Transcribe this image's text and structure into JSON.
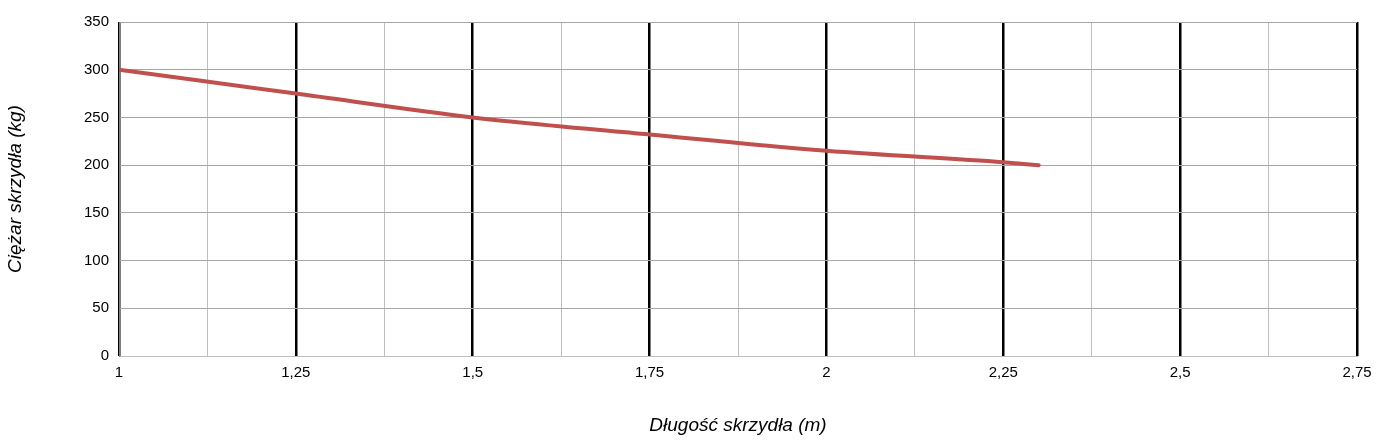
{
  "chart_data": {
    "type": "line",
    "xlabel": "Długość skrzydła (m)",
    "ylabel": "Ciężar skrzydła (kg)",
    "series": [
      {
        "color": "#c0504d",
        "x": [
          1,
          1.25,
          1.5,
          1.75,
          2,
          2.25,
          2.3
        ],
        "values": [
          300,
          275,
          250,
          232,
          215,
          203,
          200
        ]
      }
    ],
    "xlim": [
      1,
      2.75
    ],
    "xticks": [
      {
        "value": 1,
        "label": "1"
      },
      {
        "value": 1.125,
        "label": null
      },
      {
        "value": 1.25,
        "label": "1,25"
      },
      {
        "value": 1.375,
        "label": null
      },
      {
        "value": 1.5,
        "label": "1,5"
      },
      {
        "value": 1.625,
        "label": null
      },
      {
        "value": 1.75,
        "label": "1,75"
      },
      {
        "value": 1.875,
        "label": null
      },
      {
        "value": 2,
        "label": "2"
      },
      {
        "value": 2.125,
        "label": null
      },
      {
        "value": 2.25,
        "label": "2,25"
      },
      {
        "value": 2.375,
        "label": null
      },
      {
        "value": 2.5,
        "label": "2,5"
      },
      {
        "value": 2.625,
        "label": null
      },
      {
        "value": 2.75,
        "label": "2,75"
      }
    ],
    "ylim": [
      0,
      350
    ],
    "yticks": [
      0,
      50,
      100,
      150,
      200,
      250,
      300,
      350
    ],
    "grid": true,
    "legend": false,
    "marker": "none",
    "line_style": "solid"
  }
}
